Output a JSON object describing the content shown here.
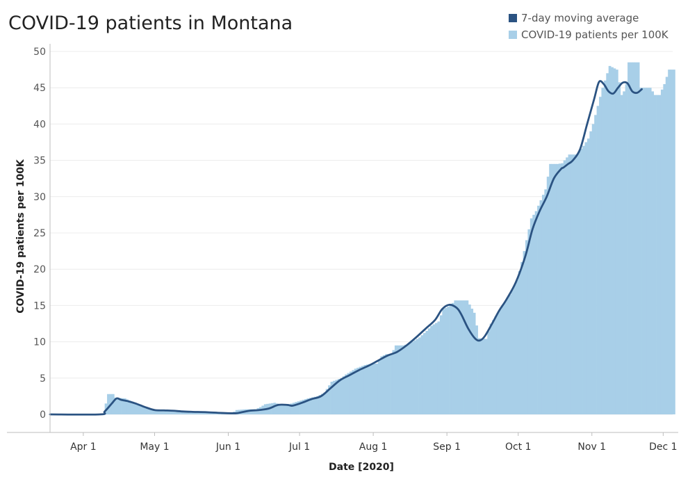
{
  "chart_data": {
    "type": "bar",
    "title": "COVID-19 patients in Montana",
    "xlabel": "Date [2020]",
    "ylabel": "COVID-19 patients per 100K",
    "ylim": [
      0,
      50
    ],
    "yticks": [
      0,
      5,
      10,
      15,
      20,
      25,
      30,
      35,
      40,
      45,
      50
    ],
    "xticks": [
      {
        "label": "Apr 1",
        "day": 14
      },
      {
        "label": "May 1",
        "day": 44
      },
      {
        "label": "Jun 1",
        "day": 75
      },
      {
        "label": "Jul 1",
        "day": 105
      },
      {
        "label": "Aug 1",
        "day": 136
      },
      {
        "label": "Sep 1",
        "day": 167
      },
      {
        "label": "Oct 1",
        "day": 197
      },
      {
        "label": "Nov 1",
        "day": 228
      },
      {
        "label": "Dec 1",
        "day": 258
      }
    ],
    "x_start": "2020-03-18",
    "legend": [
      {
        "name": "7-day moving average",
        "color": "#2b5382"
      },
      {
        "name": "COVID-19 patients per 100K",
        "color": "#a8cfe8"
      }
    ],
    "daily_anchors": [
      [
        0,
        0
      ],
      [
        22,
        0
      ],
      [
        23,
        1.5
      ],
      [
        24,
        2.8
      ],
      [
        26,
        2.8
      ],
      [
        27,
        2.3
      ],
      [
        31,
        2.2
      ],
      [
        33,
        1.9
      ],
      [
        36,
        1.5
      ],
      [
        40,
        0.9
      ],
      [
        43,
        0.6
      ],
      [
        48,
        0.6
      ],
      [
        52,
        0.5
      ],
      [
        58,
        0.4
      ],
      [
        64,
        0.4
      ],
      [
        70,
        0.2
      ],
      [
        76,
        0.15
      ],
      [
        78,
        0.6
      ],
      [
        82,
        0.7
      ],
      [
        86,
        0.7
      ],
      [
        88,
        1.0
      ],
      [
        90,
        1.4
      ],
      [
        94,
        1.6
      ],
      [
        96,
        1.4
      ],
      [
        100,
        1.4
      ],
      [
        104,
        1.8
      ],
      [
        108,
        2.2
      ],
      [
        112,
        2.5
      ],
      [
        115,
        3.0
      ],
      [
        118,
        4.5
      ],
      [
        122,
        5.0
      ],
      [
        124,
        5.5
      ],
      [
        128,
        6.3
      ],
      [
        132,
        6.8
      ],
      [
        135,
        7.0
      ],
      [
        137,
        7.0
      ],
      [
        139,
        8.0
      ],
      [
        141,
        8.3
      ],
      [
        143,
        8.2
      ],
      [
        145,
        9.5
      ],
      [
        148,
        9.5
      ],
      [
        150,
        9.7
      ],
      [
        152,
        10.0
      ],
      [
        155,
        10.6
      ],
      [
        158,
        11.5
      ],
      [
        160,
        12.2
      ],
      [
        163,
        12.8
      ],
      [
        165,
        14.5
      ],
      [
        168,
        15.0
      ],
      [
        170,
        15.7
      ],
      [
        175,
        15.7
      ],
      [
        178,
        14.0
      ],
      [
        180,
        10.5
      ],
      [
        183,
        10.4
      ],
      [
        185,
        12.5
      ],
      [
        188,
        14.0
      ],
      [
        190,
        15.0
      ],
      [
        193,
        16.5
      ],
      [
        196,
        18.5
      ],
      [
        198,
        21.0
      ],
      [
        200,
        24.0
      ],
      [
        202,
        27.0
      ],
      [
        204,
        28.0
      ],
      [
        206,
        29.5
      ],
      [
        208,
        31.0
      ],
      [
        210,
        34.5
      ],
      [
        213,
        34.5
      ],
      [
        215,
        34.6
      ],
      [
        218,
        35.8
      ],
      [
        221,
        35.8
      ],
      [
        224,
        37.0
      ],
      [
        226,
        38.0
      ],
      [
        228,
        40.0
      ],
      [
        230,
        42.5
      ],
      [
        232,
        45.0
      ],
      [
        235,
        48.0
      ],
      [
        238,
        47.5
      ],
      [
        240,
        44.0
      ],
      [
        241,
        44.5
      ],
      [
        242,
        45.5
      ],
      [
        243,
        48.5
      ],
      [
        247,
        48.5
      ],
      [
        248,
        45.0
      ],
      [
        252,
        45.0
      ],
      [
        254,
        44.0
      ],
      [
        256,
        44.0
      ],
      [
        258,
        45.5
      ],
      [
        260,
        47.5
      ],
      [
        262,
        47.5
      ]
    ],
    "series": [
      {
        "name": "7-day moving average",
        "points": [
          [
            0,
            0
          ],
          [
            21,
            0
          ],
          [
            23,
            0.4
          ],
          [
            26,
            1.5
          ],
          [
            28,
            2.2
          ],
          [
            30,
            2.0
          ],
          [
            33,
            1.8
          ],
          [
            36,
            1.5
          ],
          [
            40,
            1.0
          ],
          [
            44,
            0.6
          ],
          [
            48,
            0.55
          ],
          [
            52,
            0.5
          ],
          [
            56,
            0.4
          ],
          [
            60,
            0.35
          ],
          [
            66,
            0.3
          ],
          [
            72,
            0.2
          ],
          [
            78,
            0.15
          ],
          [
            80,
            0.25
          ],
          [
            84,
            0.5
          ],
          [
            88,
            0.6
          ],
          [
            92,
            0.8
          ],
          [
            96,
            1.3
          ],
          [
            100,
            1.3
          ],
          [
            102,
            1.2
          ],
          [
            106,
            1.6
          ],
          [
            110,
            2.1
          ],
          [
            114,
            2.5
          ],
          [
            118,
            3.6
          ],
          [
            122,
            4.7
          ],
          [
            126,
            5.4
          ],
          [
            130,
            6.1
          ],
          [
            134,
            6.7
          ],
          [
            138,
            7.4
          ],
          [
            142,
            8.1
          ],
          [
            146,
            8.6
          ],
          [
            150,
            9.5
          ],
          [
            154,
            10.6
          ],
          [
            158,
            11.8
          ],
          [
            162,
            13.0
          ],
          [
            165,
            14.5
          ],
          [
            168,
            15.1
          ],
          [
            171,
            14.7
          ],
          [
            173,
            13.8
          ],
          [
            176,
            11.8
          ],
          [
            179,
            10.4
          ],
          [
            181,
            10.2
          ],
          [
            183,
            10.8
          ],
          [
            186,
            12.5
          ],
          [
            189,
            14.3
          ],
          [
            192,
            15.8
          ],
          [
            196,
            18.2
          ],
          [
            200,
            21.8
          ],
          [
            203,
            25.5
          ],
          [
            206,
            28.0
          ],
          [
            209,
            30.0
          ],
          [
            212,
            32.5
          ],
          [
            215,
            33.8
          ],
          [
            216,
            34.0
          ],
          [
            218,
            34.5
          ],
          [
            220,
            35.0
          ],
          [
            223,
            36.5
          ],
          [
            226,
            40.0
          ],
          [
            229,
            43.5
          ],
          [
            231,
            45.8
          ],
          [
            233,
            45.5
          ],
          [
            235,
            44.5
          ],
          [
            237,
            44.2
          ],
          [
            239,
            45.0
          ],
          [
            241,
            45.7
          ],
          [
            243,
            45.6
          ],
          [
            245,
            44.5
          ],
          [
            247,
            44.3
          ],
          [
            249,
            44.8
          ]
        ]
      }
    ]
  }
}
